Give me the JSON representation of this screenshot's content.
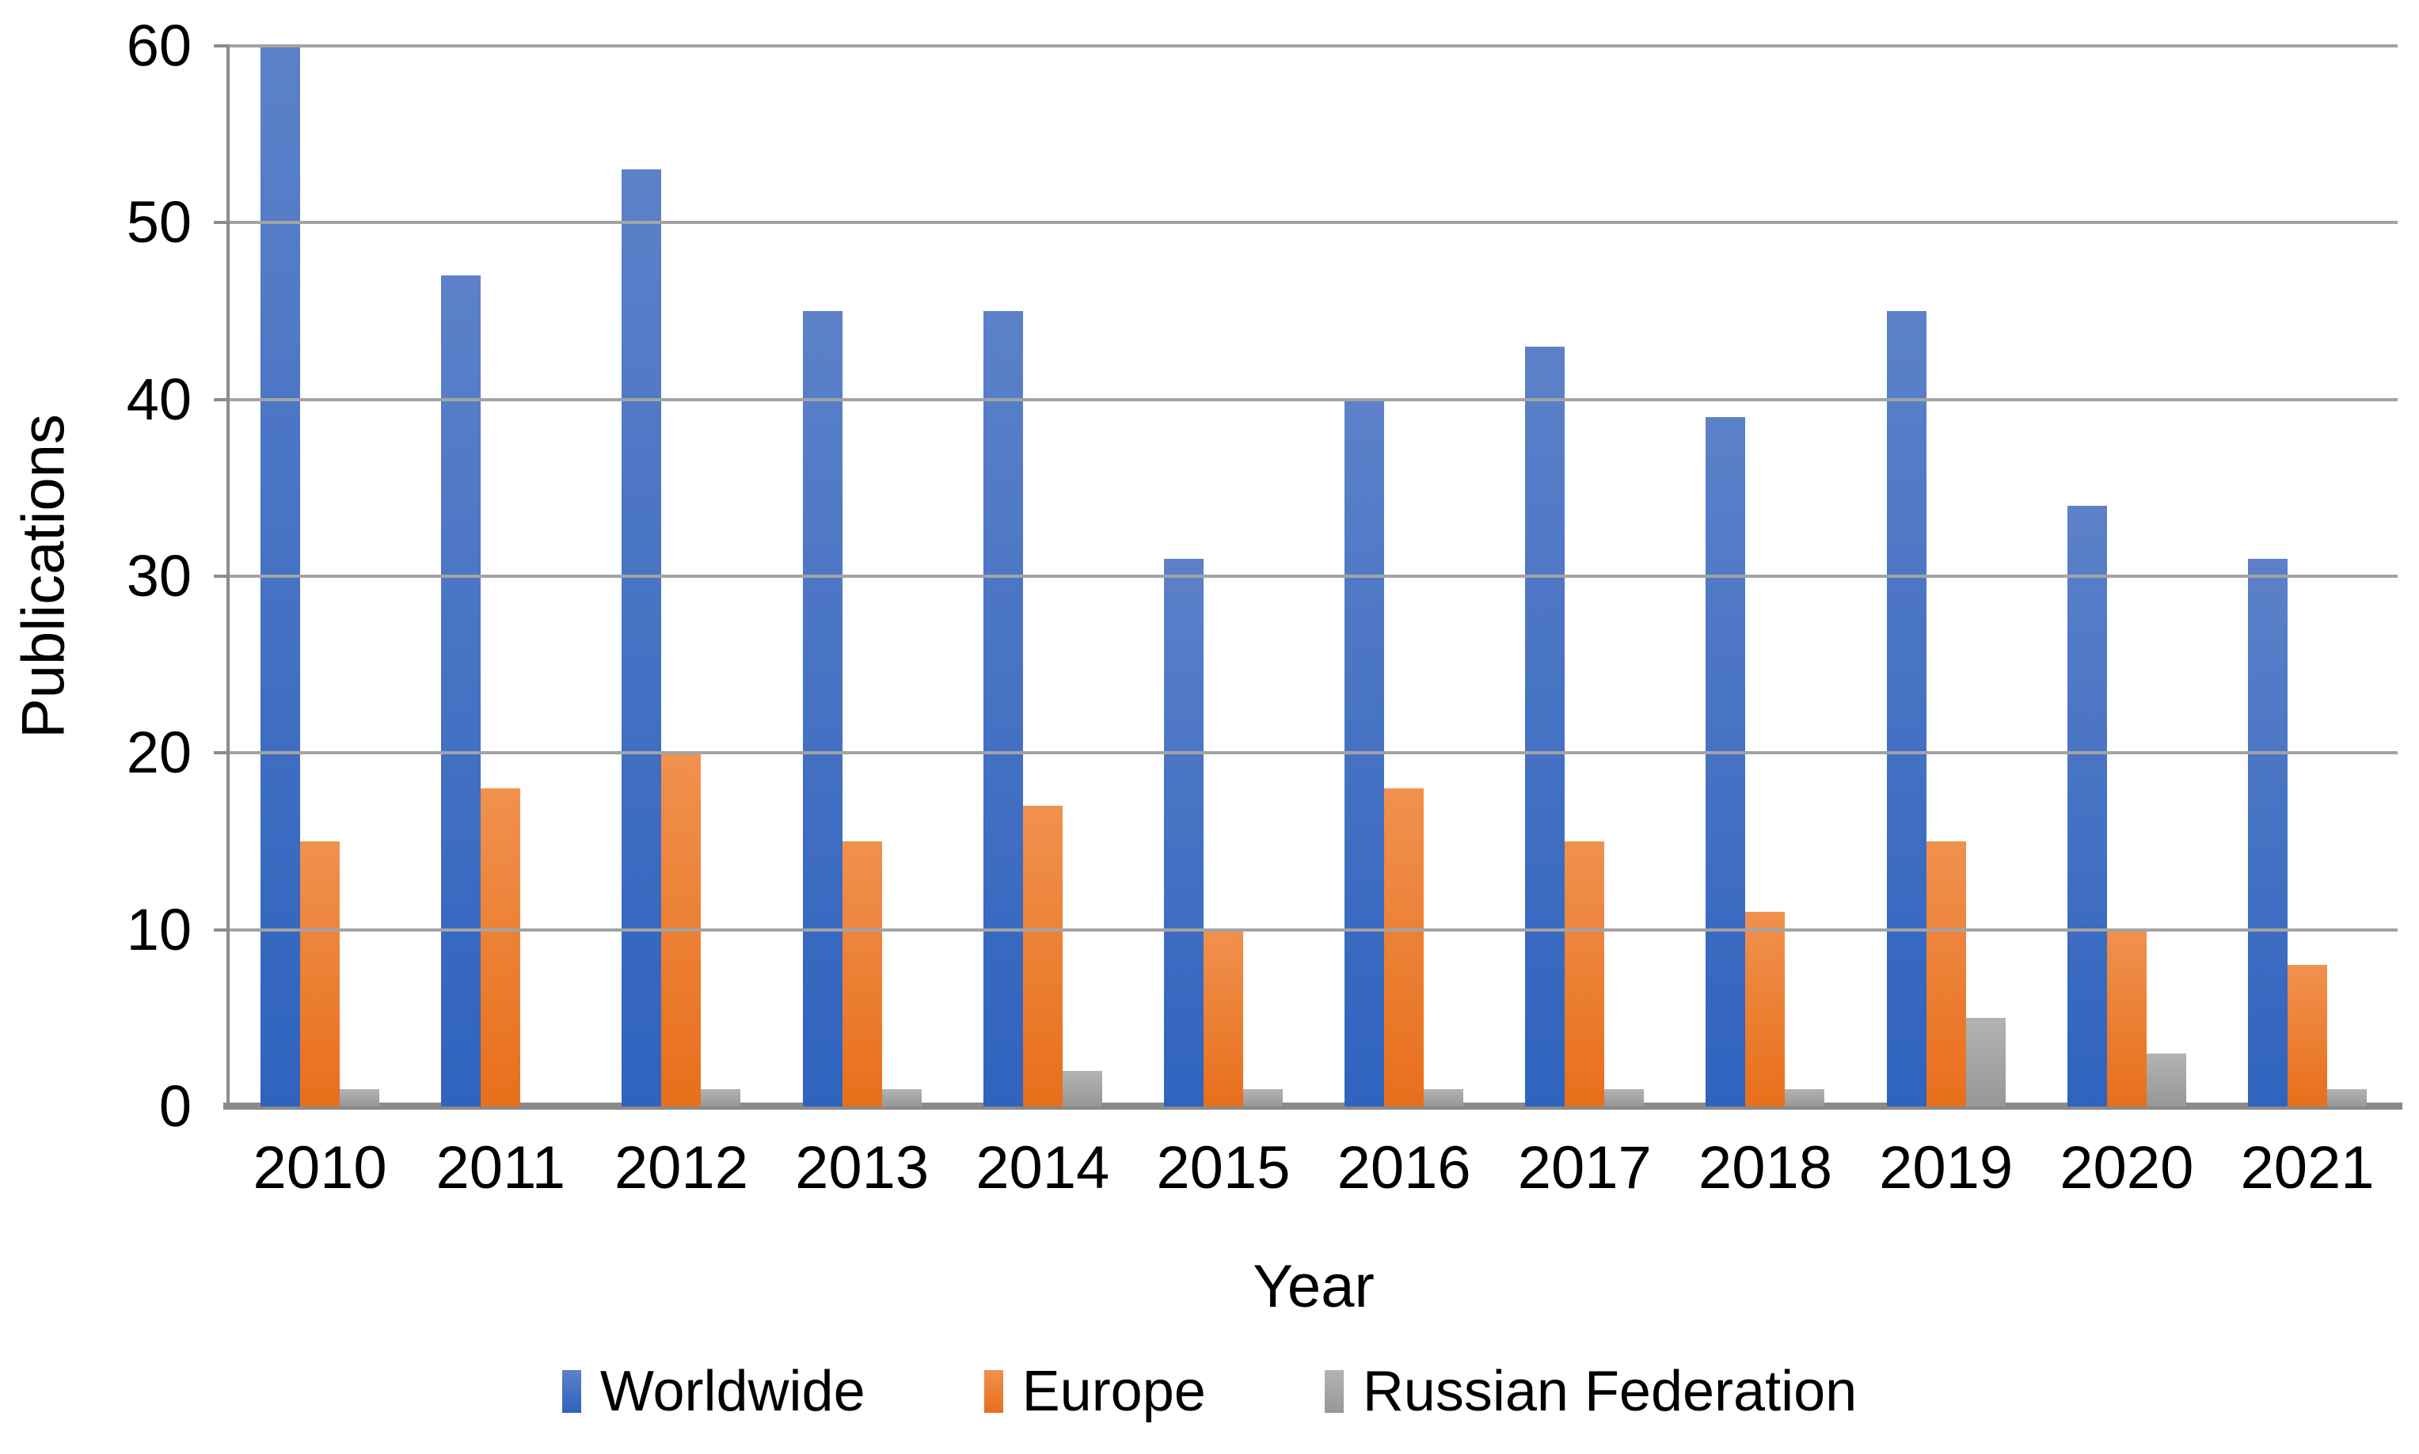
{
  "chart_data": {
    "type": "bar",
    "title": "",
    "xlabel": "Year",
    "ylabel": "Publications",
    "categories": [
      "2010",
      "2011",
      "2012",
      "2013",
      "2014",
      "2015",
      "2016",
      "2017",
      "2018",
      "2019",
      "2020",
      "2021"
    ],
    "series": [
      {
        "name": "Worldwide",
        "color": "#4472C4",
        "color_top": "#5C81C9",
        "color_bottom": "#2F63BE",
        "values": [
          60,
          47,
          53,
          45,
          45,
          31,
          40,
          43,
          39,
          45,
          34,
          31
        ]
      },
      {
        "name": "Europe",
        "color": "#ED7D31",
        "color_top": "#F0914E",
        "color_bottom": "#E86F1B",
        "values": [
          15,
          18,
          20,
          15,
          17,
          10,
          18,
          15,
          11,
          15,
          10,
          8
        ]
      },
      {
        "name": "Russian Federation",
        "color": "#A5A5A5",
        "color_top": "#B3B3B3",
        "color_bottom": "#979797",
        "values": [
          1,
          0,
          1,
          1,
          2,
          1,
          1,
          1,
          1,
          5,
          3,
          1
        ]
      }
    ],
    "ylim": [
      0,
      60
    ],
    "ytick_interval": 10,
    "yticks": [
      "0",
      "10",
      "20",
      "30",
      "40",
      "50",
      "60"
    ],
    "grid": true,
    "legend_position": "bottom"
  },
  "colors": {
    "gridline": "#A3A3A3",
    "axis": "#8C8C8C",
    "text": "#000000",
    "background": "#FFFFFF"
  }
}
